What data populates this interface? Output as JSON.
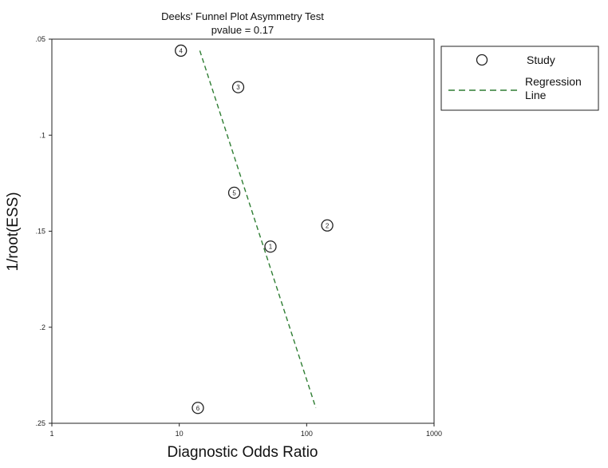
{
  "chart_data": {
    "type": "scatter",
    "title": "Deeks' Funnel Plot Asymmetry Test",
    "subtitle": "pvalue  =   0.17",
    "xlabel": "Diagnostic Odds Ratio",
    "ylabel": "1/root(ESS)",
    "x_scale": "log",
    "xlim": [
      1,
      1000
    ],
    "ylim": [
      0.05,
      0.25
    ],
    "y_reversed": true,
    "x_ticks": [
      1,
      10,
      100,
      1000
    ],
    "x_tick_labels": [
      "1",
      "10",
      "100",
      "1000"
    ],
    "y_ticks": [
      0.05,
      0.1,
      0.15,
      0.2,
      0.25
    ],
    "y_tick_labels": [
      ".05",
      ".1",
      ".15",
      ".2",
      ".25"
    ],
    "grid": false,
    "legend_position": "right",
    "series": [
      {
        "name": "Study",
        "marker": "open-circle",
        "points": [
          {
            "label": "1",
            "x": 52,
            "y": 0.158
          },
          {
            "label": "2",
            "x": 145,
            "y": 0.147
          },
          {
            "label": "3",
            "x": 29,
            "y": 0.075
          },
          {
            "label": "4",
            "x": 10.3,
            "y": 0.056
          },
          {
            "label": "5",
            "x": 27,
            "y": 0.13
          },
          {
            "label": "6",
            "x": 14,
            "y": 0.242
          }
        ]
      },
      {
        "name": "Regression Line",
        "style": "dashed",
        "color": "#2e7d32",
        "points": [
          {
            "x": 14.5,
            "y": 0.056
          },
          {
            "x": 118,
            "y": 0.242
          }
        ]
      }
    ],
    "legend": {
      "study_label": "Study",
      "regression_label_line1": "Regression",
      "regression_label_line2": "Line"
    }
  }
}
